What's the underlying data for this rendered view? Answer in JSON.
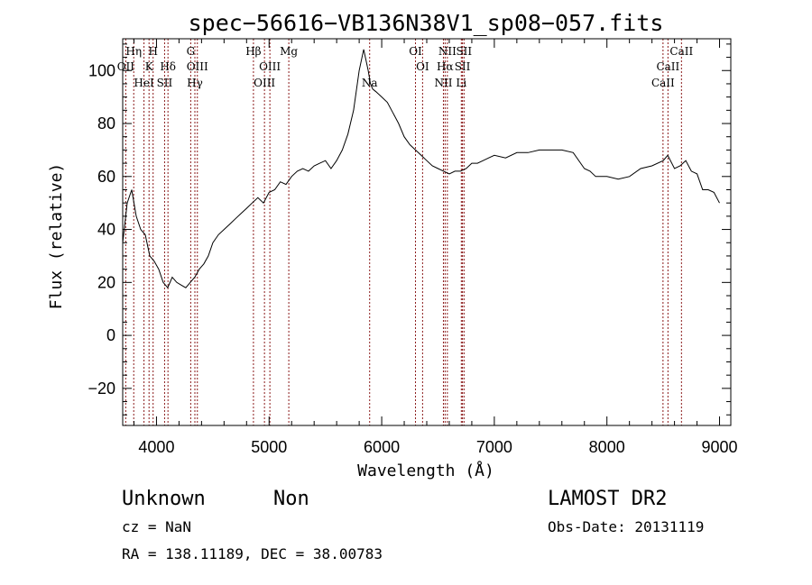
{
  "chart_data": {
    "type": "line",
    "title": "spec−56616−VB136N38V1_sp08−057.fits",
    "xlabel": "Wavelength (Å)",
    "ylabel": "Flux (relative)",
    "xlim": [
      3700,
      9100
    ],
    "ylim": [
      -34,
      112
    ],
    "xticks": [
      4000,
      5000,
      6000,
      7000,
      8000,
      9000
    ],
    "yticks": [
      -20,
      0,
      20,
      40,
      60,
      80,
      100
    ],
    "xtick_labels": [
      "4000",
      "5000",
      "6000",
      "7000",
      "8000",
      "9000"
    ],
    "ytick_labels": [
      "−20",
      "0",
      "20",
      "40",
      "60",
      "80",
      "100"
    ],
    "grid": false,
    "series": [
      {
        "color": "#000000",
        "x": [
          3700,
          3740,
          3780,
          3820,
          3860,
          3900,
          3940,
          3980,
          4020,
          4060,
          4100,
          4140,
          4180,
          4220,
          4260,
          4300,
          4340,
          4380,
          4420,
          4460,
          4500,
          4550,
          4600,
          4650,
          4700,
          4750,
          4800,
          4850,
          4900,
          4950,
          5000,
          5050,
          5100,
          5150,
          5200,
          5250,
          5300,
          5350,
          5400,
          5450,
          5500,
          5550,
          5600,
          5650,
          5700,
          5750,
          5800,
          5840,
          5860,
          5880,
          5900,
          5920,
          5950,
          6000,
          6050,
          6100,
          6150,
          6200,
          6250,
          6300,
          6350,
          6400,
          6450,
          6500,
          6550,
          6600,
          6650,
          6700,
          6750,
          6800,
          6850,
          6900,
          6950,
          7000,
          7100,
          7200,
          7300,
          7400,
          7500,
          7600,
          7700,
          7800,
          7850,
          7900,
          8000,
          8100,
          8200,
          8300,
          8400,
          8500,
          8540,
          8600,
          8650,
          8700,
          8750,
          8800,
          8850,
          8900,
          8950,
          9000
        ],
        "y": [
          35,
          50,
          55,
          45,
          40,
          38,
          30,
          28,
          25,
          20,
          18,
          22,
          20,
          19,
          18,
          20,
          22,
          25,
          27,
          30,
          35,
          38,
          40,
          42,
          44,
          46,
          48,
          50,
          52,
          50,
          54,
          55,
          58,
          57,
          60,
          62,
          63,
          62,
          64,
          65,
          66,
          63,
          66,
          70,
          76,
          85,
          100,
          108,
          104,
          100,
          95,
          93,
          92,
          90,
          88,
          84,
          80,
          75,
          72,
          70,
          68,
          66,
          64,
          63,
          62,
          61,
          62,
          62,
          63,
          65,
          65,
          66,
          67,
          68,
          67,
          69,
          69,
          70,
          70,
          70,
          69,
          63,
          62,
          60,
          60,
          59,
          60,
          63,
          64,
          66,
          68,
          63,
          64,
          66,
          62,
          61,
          55,
          55,
          54,
          50
        ]
      }
    ],
    "spectral_lines": [
      {
        "wavelength": 3727,
        "labels": [
          {
            "text": "OII",
            "row": 2
          }
        ]
      },
      {
        "wavelength": 3798,
        "labels": [
          {
            "text": "Hη",
            "row": 1
          }
        ]
      },
      {
        "wavelength": 3889,
        "labels": [
          {
            "text": "HeI",
            "row": 3
          }
        ]
      },
      {
        "wavelength": 3934,
        "labels": [
          {
            "text": "K",
            "row": 2
          }
        ]
      },
      {
        "wavelength": 3970,
        "labels": [
          {
            "text": "H",
            "row": 1
          }
        ]
      },
      {
        "wavelength": 4072,
        "labels": [
          {
            "text": "SII",
            "row": 3
          }
        ]
      },
      {
        "wavelength": 4102,
        "labels": [
          {
            "text": "Hδ",
            "row": 2
          }
        ]
      },
      {
        "wavelength": 4304,
        "labels": [
          {
            "text": "G",
            "row": 1
          }
        ]
      },
      {
        "wavelength": 4341,
        "labels": [
          {
            "text": "Hγ",
            "row": 3
          }
        ]
      },
      {
        "wavelength": 4363,
        "labels": [
          {
            "text": "OIII",
            "row": 2
          }
        ]
      },
      {
        "wavelength": 4861,
        "labels": [
          {
            "text": "Hβ",
            "row": 1
          }
        ]
      },
      {
        "wavelength": 4959,
        "labels": [
          {
            "text": "OIII",
            "row": 3
          }
        ]
      },
      {
        "wavelength": 5007,
        "labels": [
          {
            "text": "OIII",
            "row": 2
          }
        ]
      },
      {
        "wavelength": 5175,
        "labels": [
          {
            "text": "Mg",
            "row": 1
          }
        ]
      },
      {
        "wavelength": 5893,
        "labels": [
          {
            "text": "Na",
            "row": 3
          }
        ]
      },
      {
        "wavelength": 6300,
        "labels": [
          {
            "text": "OI",
            "row": 1
          }
        ]
      },
      {
        "wavelength": 6363,
        "labels": [
          {
            "text": "OI",
            "row": 2
          }
        ]
      },
      {
        "wavelength": 6548,
        "labels": [
          {
            "text": "NII",
            "row": 3
          }
        ]
      },
      {
        "wavelength": 6563,
        "labels": [
          {
            "text": "Hα",
            "row": 2
          }
        ]
      },
      {
        "wavelength": 6583,
        "labels": [
          {
            "text": "NII",
            "row": 1
          }
        ]
      },
      {
        "wavelength": 6707,
        "labels": [
          {
            "text": "Li",
            "row": 3
          }
        ]
      },
      {
        "wavelength": 6717,
        "labels": [
          {
            "text": "SII",
            "row": 2
          }
        ]
      },
      {
        "wavelength": 6731,
        "labels": [
          {
            "text": "SII",
            "row": 1
          }
        ]
      },
      {
        "wavelength": 8498,
        "labels": [
          {
            "text": "CaII",
            "row": 3
          }
        ]
      },
      {
        "wavelength": 8542,
        "labels": [
          {
            "text": "CaII",
            "row": 2
          }
        ]
      },
      {
        "wavelength": 8662,
        "labels": [
          {
            "text": "CaII",
            "row": 1
          }
        ]
      }
    ],
    "line_marker_color": "#8b1a1a"
  },
  "info": {
    "class_text": "Unknown",
    "subclass_text": "Non",
    "survey_text": "LAMOST DR2",
    "cz_text": "cz = NaN",
    "obsdate_text": "Obs-Date: 20131119",
    "radec_text": "RA = 138.11189, DEC =  38.00783"
  }
}
